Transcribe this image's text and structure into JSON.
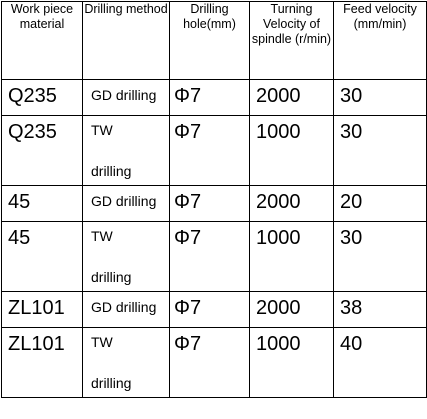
{
  "headers": [
    "Work piece material",
    "Drilling method",
    "Drilling hole(mm)",
    "Turning Velocity of spindle (r/min)",
    "Feed velocity (mm/min)"
  ],
  "rows": [
    {
      "material": "Q235",
      "method_line1": "GD drilling",
      "method_line2": "",
      "hole": "Φ7",
      "spindle": "2000",
      "feed": "30"
    },
    {
      "material": "Q235",
      "method_line1": "TW",
      "method_line2": "drilling",
      "hole": "Φ7",
      "spindle": "1000",
      "feed": "30"
    },
    {
      "material": "45",
      "method_line1": "GD drilling",
      "method_line2": "",
      "hole": "Φ7",
      "spindle": "2000",
      "feed": "20"
    },
    {
      "material": "45",
      "method_line1": "TW",
      "method_line2": "drilling",
      "hole": "Φ7",
      "spindle": "1000",
      "feed": "30"
    },
    {
      "material": "ZL101",
      "method_line1": "GD drilling",
      "method_line2": "",
      "hole": "Φ7",
      "spindle": "2000",
      "feed": "38"
    },
    {
      "material": "ZL101",
      "method_line1": "TW",
      "method_line2": "drilling",
      "hole": "Φ7",
      "spindle": "1000",
      "feed": "40"
    }
  ]
}
